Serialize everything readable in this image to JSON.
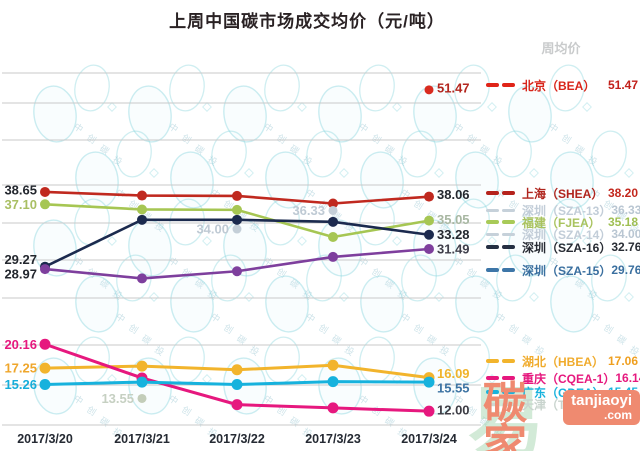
{
  "title": "上周中国碳市场成交均价（元/吨）",
  "legend": {
    "header": "周均价",
    "items": [
      {
        "name": "北京（BEA）",
        "value": "51.47",
        "color": "#e02418",
        "text_color": "#d8251a",
        "value_color": "#c2201a",
        "muted": false
      },
      {
        "name": "上海（SHEA）",
        "value": "38.20",
        "color": "#b5231c",
        "text_color": "#b0251e",
        "value_color": "#c3271d",
        "muted": false
      },
      {
        "name": "深圳（SZA-13）",
        "value": "36.33",
        "color": "#c6d1da",
        "text_color": "#c2cdd8",
        "value_color": "#b9c6d2",
        "muted": true
      },
      {
        "name": "福建（FJEA）",
        "value": "35.18",
        "color": "#a8ca58",
        "text_color": "#a9c35f",
        "value_color": "#9fbf52",
        "muted": false
      },
      {
        "name": "深圳（SZA-14）",
        "value": "34.00",
        "color": "#c6d1da",
        "text_color": "#c2cdd8",
        "value_color": "#b9c6d2",
        "muted": true
      },
      {
        "name": "深圳（SZA-16）",
        "value": "32.76",
        "color": "#252f42",
        "text_color": "#272b33",
        "value_color": "#272b33",
        "muted": false
      },
      {
        "name": "深圳（SZA-15）",
        "value": "29.76",
        "color": "#3d76a8",
        "text_color": "#3a6f9f",
        "value_color": "#3a6f9f",
        "muted": false
      },
      {
        "name": "湖北（HBEA）",
        "value": "17.06",
        "color": "#f2b42c",
        "text_color": "#f0ab2c",
        "value_color": "#ef9f1f",
        "muted": false
      },
      {
        "name": "重庆（CQEA-1）",
        "value": "16.14",
        "color": "#e6187e",
        "text_color": "#e6187e",
        "value_color": "#e6187e",
        "muted": false
      },
      {
        "name": "广东（GDEA）",
        "value": "15.45",
        "color": "#17b2dd",
        "text_color": "#17b2dd",
        "value_color": "#17b2dd",
        "muted": false
      },
      {
        "name": "天津（TJEA16）",
        "value": "13.55",
        "color": "#cdd8d2",
        "text_color": "#c9d4ce",
        "value_color": "#c4d2c8",
        "muted": true
      }
    ]
  },
  "chart_data": {
    "type": "line",
    "title": "上周中国碳市场成交均价（元/吨）",
    "unit": "元/吨",
    "grid": true,
    "legend_position": "right",
    "x_categories": [
      "2017/3/20",
      "2017/3/21",
      "2017/3/22",
      "2017/3/23",
      "2017/3/24"
    ],
    "panels": [
      {
        "id": "high",
        "y_range": [
          44,
          56
        ],
        "series": [
          {
            "name": "北京（BEA）",
            "color": "#d92b1f",
            "points": [
              {
                "x": 4,
                "v": 51.47,
                "label": "51.47",
                "label_color": "#b3261e",
                "anchor": "right",
                "dy": -2
              }
            ]
          }
        ]
      },
      {
        "id": "mid",
        "y_range": [
          24,
          40.5
        ],
        "series": [
          {
            "name": "上海（SHEA）",
            "color": "#c0291f",
            "points": [
              {
                "x": 0,
                "v": 38.65,
                "label": "38.65",
                "label_color": "#23272e",
                "anchor": "left",
                "dy": -2
              },
              {
                "x": 1,
                "v": 38.2
              },
              {
                "x": 2,
                "v": 38.15
              },
              {
                "x": 3,
                "v": 37.2
              },
              {
                "x": 4,
                "v": 38.06,
                "label": "38.06",
                "label_color": "#23272e",
                "anchor": "right",
                "dy": -2
              }
            ]
          },
          {
            "name": "深圳（SZA-13）",
            "color": "#c4cfd8",
            "points": [
              {
                "x": 3,
                "v": 36.33,
                "label": "36.33",
                "label_color": "#bfcad4",
                "anchor": "left",
                "dy": 0
              }
            ]
          },
          {
            "name": "福建（FJEA）",
            "color": "#a6c653",
            "points": [
              {
                "x": 0,
                "v": 37.1,
                "label": "37.10",
                "label_color": "#a9bf63",
                "anchor": "left",
                "dy": 0
              },
              {
                "x": 1,
                "v": 36.45
              },
              {
                "x": 2,
                "v": 36.4
              },
              {
                "x": 3,
                "v": 33.0
              },
              {
                "x": 4,
                "v": 35.05,
                "label": "35.05",
                "label_color": "#a8b7a2",
                "anchor": "right",
                "dy": -1
              }
            ]
          },
          {
            "name": "深圳（SZA-14）",
            "color": "#c4cfd8",
            "points": [
              {
                "x": 2,
                "v": 34.0,
                "label": "34.00",
                "label_color": "#bfcad4",
                "anchor": "left",
                "dy": 0
              }
            ]
          },
          {
            "name": "深圳（SZA-16）",
            "color": "#1b2a4e",
            "points": [
              {
                "x": 0,
                "v": 29.27,
                "label": "29.27",
                "label_color": "#23272e",
                "anchor": "left",
                "dy": -7
              },
              {
                "x": 1,
                "v": 35.15
              },
              {
                "x": 2,
                "v": 35.15
              },
              {
                "x": 3,
                "v": 34.9
              },
              {
                "x": 4,
                "v": 33.28,
                "label": "33.28",
                "label_color": "#23272e",
                "anchor": "right",
                "dy": 0
              }
            ]
          },
          {
            "name": "深圳（SZA-15）",
            "color": "#7e3f9d",
            "points": [
              {
                "x": 0,
                "v": 28.97,
                "label": "28.97",
                "label_color": "#23272e",
                "anchor": "left",
                "dy": 5
              },
              {
                "x": 1,
                "v": 27.8
              },
              {
                "x": 2,
                "v": 28.7
              },
              {
                "x": 3,
                "v": 30.5
              },
              {
                "x": 4,
                "v": 31.49,
                "label": "31.49",
                "label_color": "#3e3e4a",
                "anchor": "right",
                "dy": 0
              }
            ]
          }
        ]
      },
      {
        "id": "low",
        "y_range": [
          10,
          22
        ],
        "series": [
          {
            "name": "湖北（HBEA）",
            "color": "#f2b42c",
            "points": [
              {
                "x": 0,
                "v": 17.25,
                "label": "17.25",
                "label_color": "#efa62b",
                "anchor": "left",
                "dy": 0
              },
              {
                "x": 1,
                "v": 17.5
              },
              {
                "x": 2,
                "v": 17.05
              },
              {
                "x": 3,
                "v": 17.6
              },
              {
                "x": 4,
                "v": 16.09,
                "label": "16.09",
                "label_color": "#f0b32a",
                "anchor": "right",
                "dy": -4
              }
            ]
          },
          {
            "name": "重庆（CQEA-1）",
            "color": "#e6187e",
            "points": [
              {
                "x": 0,
                "v": 20.16,
                "label": "20.16",
                "label_color": "#e6187e",
                "anchor": "left",
                "dy": 0
              },
              {
                "x": 1,
                "v": 16.05
              },
              {
                "x": 2,
                "v": 12.8
              },
              {
                "x": 3,
                "v": 12.4
              },
              {
                "x": 4,
                "v": 12.0,
                "label": "12.00",
                "label_color": "#3c3c44",
                "anchor": "right",
                "dy": -1
              }
            ]
          },
          {
            "name": "广东（GDEA）",
            "color": "#17b2dd",
            "points": [
              {
                "x": 0,
                "v": 15.26,
                "label": "15.26",
                "label_color": "#17aeda",
                "anchor": "left",
                "dy": 0
              },
              {
                "x": 1,
                "v": 15.55
              },
              {
                "x": 2,
                "v": 15.25
              },
              {
                "x": 3,
                "v": 15.6
              },
              {
                "x": 4,
                "v": 15.55,
                "label": "15.55",
                "label_color": "#3e74a3",
                "anchor": "right",
                "dy": 6
              }
            ]
          },
          {
            "name": "天津（TJEA）",
            "color": "#c3cdb9",
            "points": [
              {
                "x": 1,
                "v": 13.55,
                "label": "13.55",
                "label_color": "#c6d0c2",
                "anchor": "left",
                "dy": 0
              }
            ]
          }
        ]
      }
    ]
  },
  "watermark": {
    "brand": "碳家",
    "url_line1": "tanjiaoyi",
    "url_line2": ".com",
    "bg_mark": "中创碳投",
    "corner_mark": "易"
  }
}
